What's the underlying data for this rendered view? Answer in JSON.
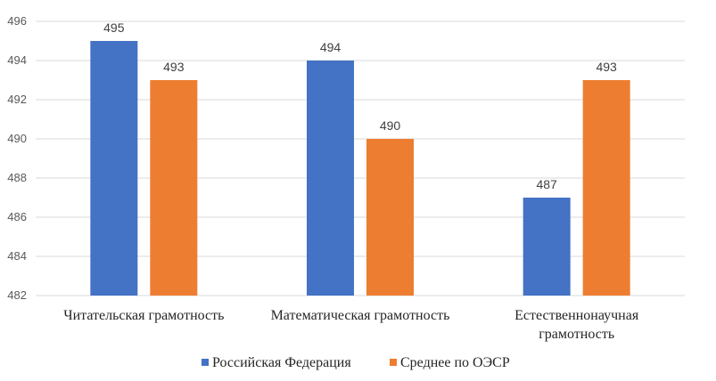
{
  "chart_data": {
    "type": "bar",
    "categories": [
      [
        "Читательская грамотность"
      ],
      [
        "Математическая грамотность"
      ],
      [
        "Естественнонаучная",
        "грамотность"
      ]
    ],
    "series": [
      {
        "name": "Российская Федерация",
        "color": "#4472C4",
        "values": [
          495,
          494,
          487
        ]
      },
      {
        "name": "Среднее по ОЭСР",
        "color": "#ED7D31",
        "values": [
          493,
          490,
          493
        ]
      }
    ],
    "ylim": [
      482,
      496
    ],
    "yticks": [
      482,
      484,
      486,
      488,
      490,
      492,
      494,
      496
    ],
    "grid": true,
    "legend": "bottom",
    "data_labels": true,
    "title": "",
    "xlabel": "",
    "ylabel": ""
  }
}
